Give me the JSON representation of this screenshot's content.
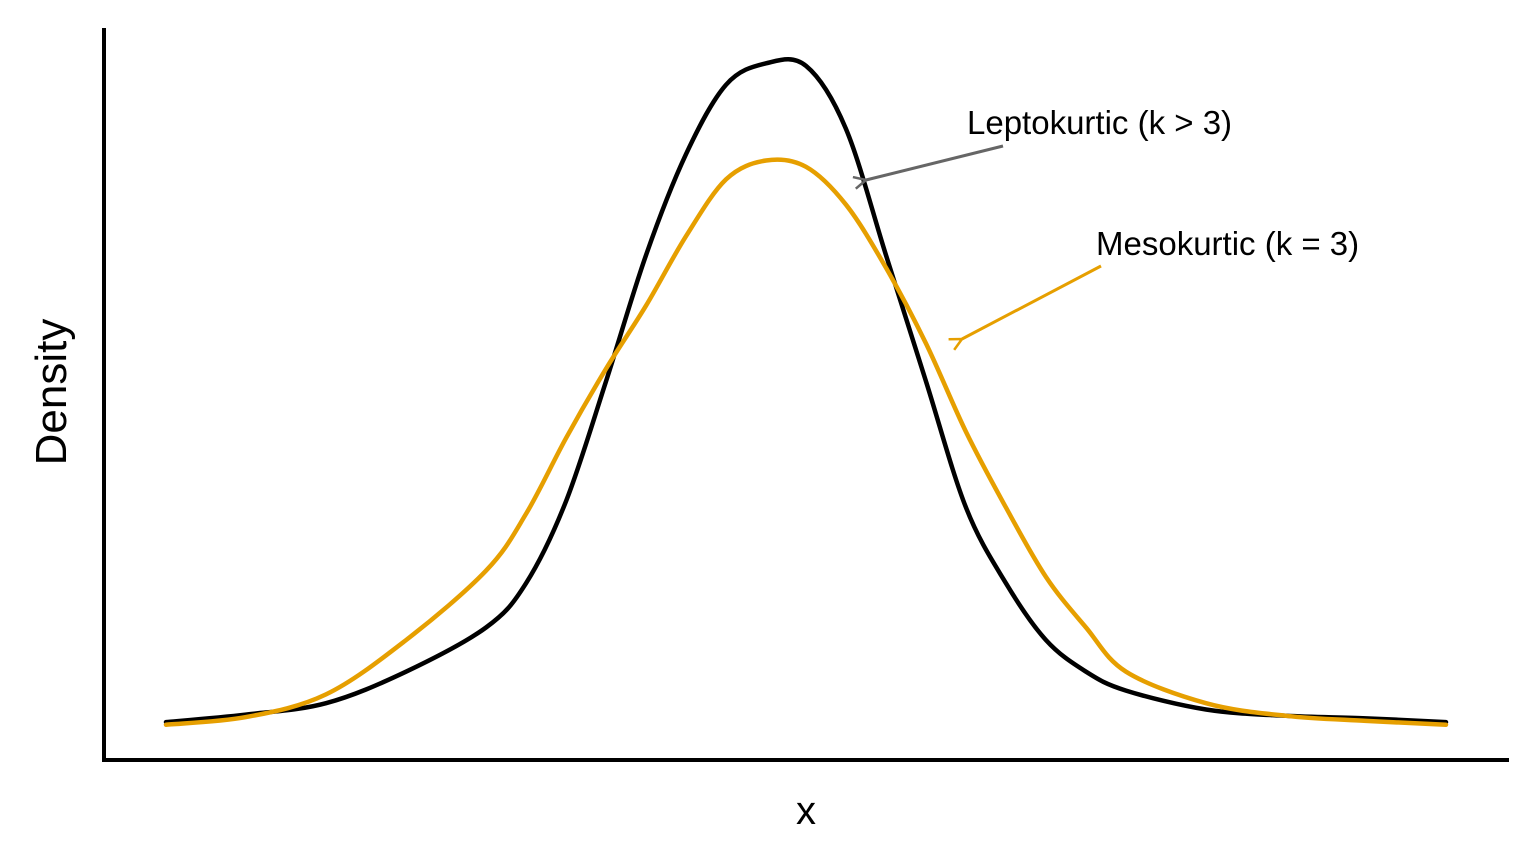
{
  "chart_data": {
    "type": "line",
    "title": "",
    "xlabel": "x",
    "ylabel": "Density",
    "xlim": [
      -4,
      4
    ],
    "ylim": [
      0,
      0.58
    ],
    "grid": false,
    "legend": "none",
    "series": [
      {
        "color": "#000000",
        "x": [
          -4.0,
          -3.5,
          -3.0,
          -2.5,
          -2.0,
          -1.75,
          -1.5,
          -1.25,
          -1.0,
          -0.75,
          -0.5,
          -0.25,
          0.0,
          0.25,
          0.5,
          0.75,
          1.0,
          1.25,
          1.5,
          1.75,
          2.0,
          2.5,
          3.0,
          3.5,
          4.0
        ],
        "y": [
          0.03,
          0.036,
          0.045,
          0.07,
          0.105,
          0.14,
          0.205,
          0.3,
          0.4,
          0.48,
          0.535,
          0.552,
          0.55,
          0.5,
          0.4,
          0.3,
          0.2,
          0.14,
          0.095,
          0.07,
          0.055,
          0.04,
          0.035,
          0.033,
          0.03
        ]
      },
      {
        "color": "#E69F00",
        "x": [
          -4.0,
          -3.5,
          -3.0,
          -2.5,
          -2.0,
          -1.75,
          -1.5,
          -1.25,
          -1.0,
          -0.75,
          -0.5,
          -0.25,
          0.0,
          0.25,
          0.5,
          0.75,
          1.0,
          1.25,
          1.5,
          1.75,
          2.0,
          2.5,
          3.0,
          3.5,
          4.0
        ],
        "y": [
          0.028,
          0.034,
          0.052,
          0.095,
          0.15,
          0.195,
          0.255,
          0.31,
          0.36,
          0.415,
          0.46,
          0.475,
          0.47,
          0.44,
          0.39,
          0.33,
          0.26,
          0.2,
          0.145,
          0.105,
          0.07,
          0.045,
          0.035,
          0.031,
          0.028
        ]
      }
    ],
    "annotations": [
      {
        "text": "Leptokurtic (k > 3)",
        "color": "#666666",
        "target": [
          0.35,
          0.5
        ]
      },
      {
        "text": "Mesokurtic (k = 3)",
        "color": "#E69F00",
        "target": [
          0.95,
          0.36
        ]
      }
    ]
  }
}
